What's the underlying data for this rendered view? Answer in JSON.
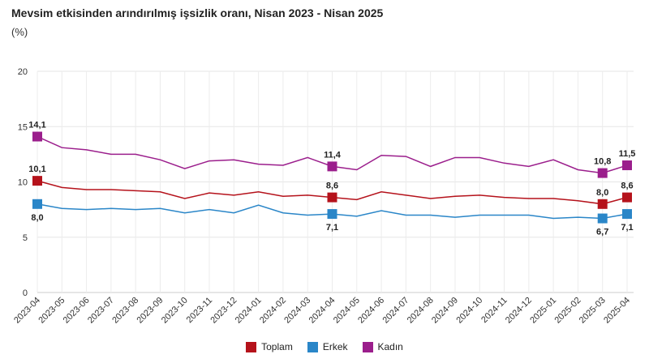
{
  "title": "Mevsim etkisinden arındırılmış işsizlik oranı, Nisan 2023 - Nisan 2025",
  "unit": "(%)",
  "chart_data": {
    "type": "line",
    "title": "Mevsim etkisinden arındırılmış işsizlik oranı, Nisan 2023 - Nisan 2025",
    "ylabel": "(%)",
    "ylim": [
      0,
      20
    ],
    "yticks": [
      0,
      5,
      10,
      15,
      20
    ],
    "grid": true,
    "legend": "bottom",
    "categories": [
      "2023-04",
      "2023-05",
      "2023-06",
      "2023-07",
      "2023-08",
      "2023-09",
      "2023-10",
      "2023-11",
      "2023-12",
      "2024-01",
      "2024-02",
      "2024-03",
      "2024-04",
      "2024-05",
      "2024-06",
      "2024-07",
      "2024-08",
      "2024-09",
      "2024-10",
      "2024-11",
      "2024-12",
      "2025-01",
      "2025-02",
      "2025-03",
      "2025-04"
    ],
    "labeled_points": [
      0,
      12,
      23,
      24
    ],
    "series": [
      {
        "name": "Toplam",
        "color": "#b5121b",
        "label_pos": "above",
        "values": [
          10.1,
          9.5,
          9.3,
          9.3,
          9.2,
          9.1,
          8.5,
          9.0,
          8.8,
          9.1,
          8.7,
          8.8,
          8.6,
          8.4,
          9.1,
          8.8,
          8.5,
          8.7,
          8.8,
          8.6,
          8.5,
          8.5,
          8.3,
          8.0,
          8.6
        ]
      },
      {
        "name": "Erkek",
        "color": "#2a86c8",
        "label_pos": "below",
        "values": [
          8.0,
          7.6,
          7.5,
          7.6,
          7.5,
          7.6,
          7.2,
          7.5,
          7.2,
          7.9,
          7.2,
          7.0,
          7.1,
          6.9,
          7.4,
          7.0,
          7.0,
          6.8,
          7.0,
          7.0,
          7.0,
          6.7,
          6.8,
          6.7,
          7.1
        ]
      },
      {
        "name": "Kadın",
        "color": "#9b1e8c",
        "label_pos": "above",
        "values": [
          14.1,
          13.1,
          12.9,
          12.5,
          12.5,
          12.0,
          11.2,
          11.9,
          12.0,
          11.6,
          11.5,
          12.2,
          11.4,
          11.1,
          12.4,
          12.3,
          11.4,
          12.2,
          12.2,
          11.7,
          11.4,
          12.0,
          11.1,
          10.8,
          11.5
        ]
      }
    ]
  }
}
